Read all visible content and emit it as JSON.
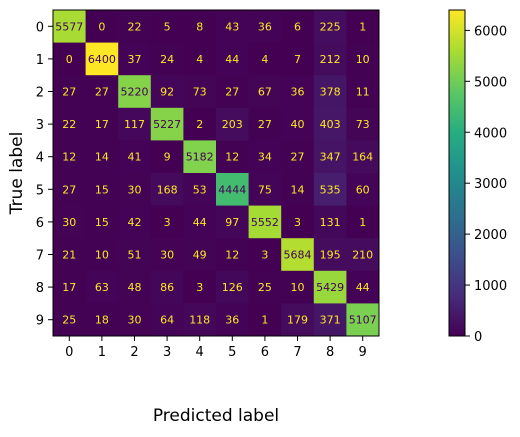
{
  "chart_data": {
    "type": "heatmap",
    "title": "",
    "xlabel": "Predicted label",
    "ylabel": "True label",
    "x_categories": [
      "0",
      "1",
      "2",
      "3",
      "4",
      "5",
      "6",
      "7",
      "8",
      "9"
    ],
    "y_categories": [
      "0",
      "1",
      "2",
      "3",
      "4",
      "5",
      "6",
      "7",
      "8",
      "9"
    ],
    "matrix": [
      [
        5577,
        0,
        22,
        5,
        8,
        43,
        36,
        6,
        225,
        1
      ],
      [
        0,
        6400,
        37,
        24,
        4,
        44,
        4,
        7,
        212,
        10
      ],
      [
        27,
        27,
        5220,
        92,
        73,
        27,
        67,
        36,
        378,
        11
      ],
      [
        22,
        17,
        117,
        5227,
        2,
        203,
        27,
        40,
        403,
        73
      ],
      [
        12,
        14,
        41,
        9,
        5182,
        12,
        34,
        27,
        347,
        164
      ],
      [
        27,
        15,
        30,
        168,
        53,
        4444,
        75,
        14,
        535,
        60
      ],
      [
        30,
        15,
        42,
        3,
        44,
        97,
        5552,
        3,
        131,
        1
      ],
      [
        21,
        10,
        51,
        30,
        49,
        12,
        3,
        5684,
        195,
        210
      ],
      [
        17,
        63,
        48,
        86,
        3,
        126,
        25,
        10,
        5429,
        44
      ],
      [
        25,
        18,
        30,
        64,
        118,
        36,
        1,
        179,
        371,
        5107
      ]
    ],
    "colormap": "viridis",
    "color_range": [
      0,
      6400
    ],
    "colorbar_ticks": [
      0,
      1000,
      2000,
      3000,
      4000,
      5000,
      6000
    ],
    "colorbar_tick_labels": [
      "0",
      "1000",
      "2000",
      "3000",
      "4000",
      "5000",
      "6000"
    ],
    "light_text_color": "#fde725",
    "dark_text_color": "#440154"
  }
}
